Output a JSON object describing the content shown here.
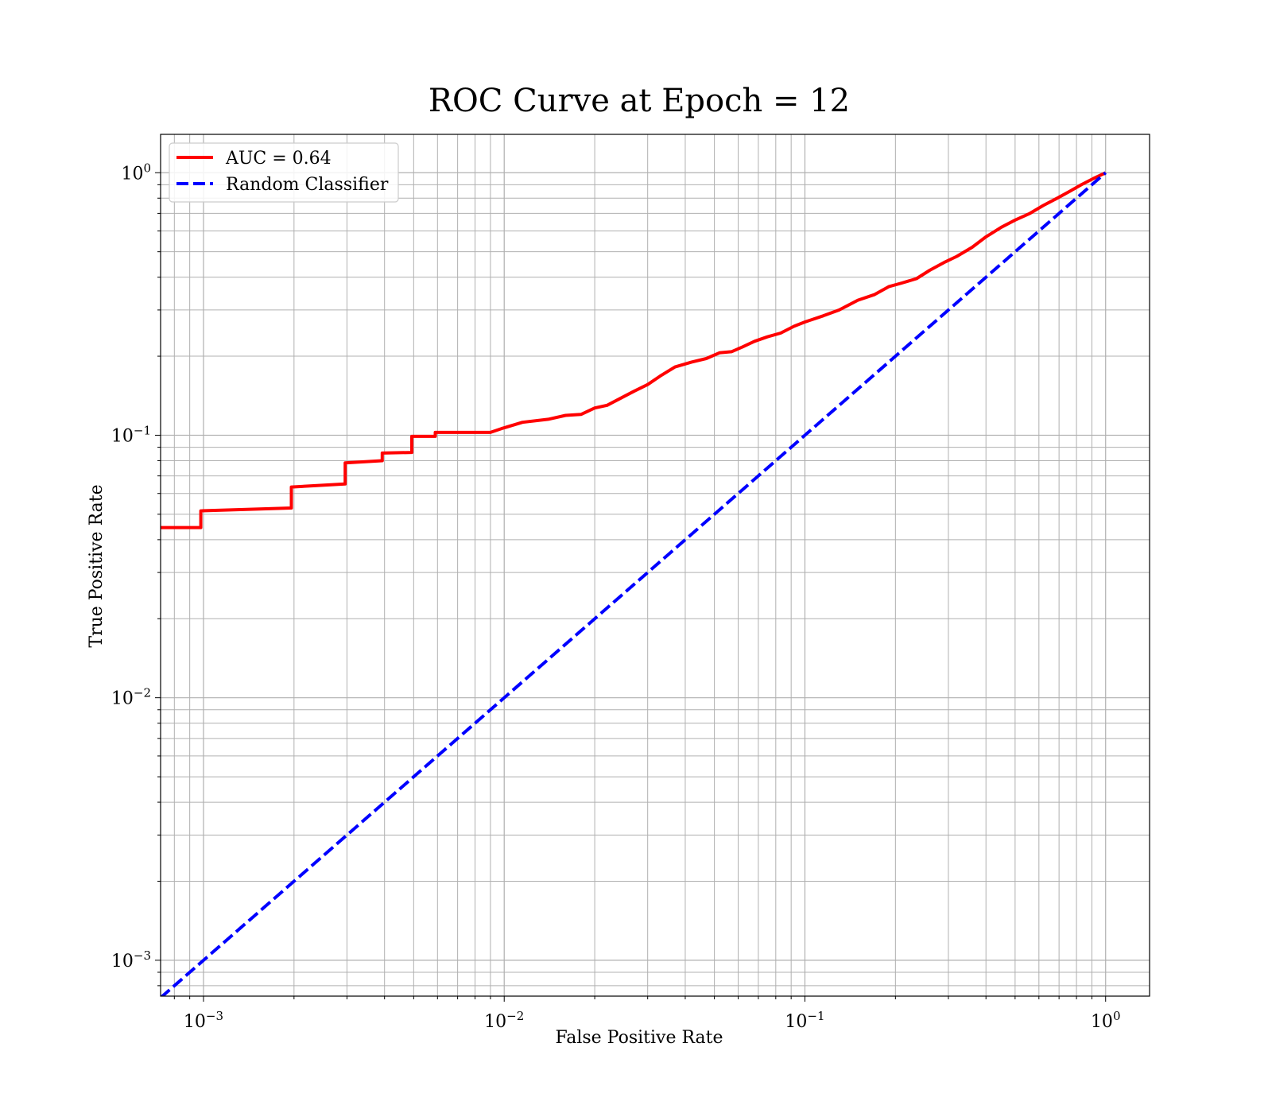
{
  "chart_data": {
    "type": "line",
    "title": "ROC Curve at Epoch = 12",
    "xlabel": "False Positive Rate",
    "ylabel": "True Positive Rate",
    "xscale": "log",
    "yscale": "log",
    "xlim": [
      0.00072,
      1.4
    ],
    "ylim": [
      0.00073,
      1.4
    ],
    "grid": true,
    "grid_minor": true,
    "legend_position": "upper left",
    "x_ticks": [
      {
        "value": 0.001,
        "base": "10",
        "exp": "−3"
      },
      {
        "value": 0.01,
        "base": "10",
        "exp": "−2"
      },
      {
        "value": 0.1,
        "base": "10",
        "exp": "−1"
      },
      {
        "value": 1,
        "base": "10",
        "exp": "0"
      }
    ],
    "y_ticks": [
      {
        "value": 0.001,
        "base": "10",
        "exp": "−3"
      },
      {
        "value": 0.01,
        "base": "10",
        "exp": "−2"
      },
      {
        "value": 0.1,
        "base": "10",
        "exp": "−1"
      },
      {
        "value": 1,
        "base": "10",
        "exp": "0"
      }
    ],
    "series": [
      {
        "name": "AUC = 0.64",
        "color": "#ff0000",
        "style": "solid",
        "points": [
          [
            0.00072,
            0.0445
          ],
          [
            0.00098,
            0.0445
          ],
          [
            0.00098,
            0.0515
          ],
          [
            0.00196,
            0.0528
          ],
          [
            0.00196,
            0.0635
          ],
          [
            0.00296,
            0.0652
          ],
          [
            0.00296,
            0.0785
          ],
          [
            0.00393,
            0.08
          ],
          [
            0.00393,
            0.0855
          ],
          [
            0.00493,
            0.086
          ],
          [
            0.00493,
            0.099
          ],
          [
            0.0059,
            0.099
          ],
          [
            0.0059,
            0.1025
          ],
          [
            0.009,
            0.1025
          ],
          [
            0.0098,
            0.106
          ],
          [
            0.0115,
            0.112
          ],
          [
            0.014,
            0.115
          ],
          [
            0.016,
            0.119
          ],
          [
            0.018,
            0.12
          ],
          [
            0.02,
            0.127
          ],
          [
            0.022,
            0.13
          ],
          [
            0.024,
            0.137
          ],
          [
            0.027,
            0.147
          ],
          [
            0.03,
            0.156
          ],
          [
            0.033,
            0.168
          ],
          [
            0.037,
            0.182
          ],
          [
            0.042,
            0.19
          ],
          [
            0.047,
            0.196
          ],
          [
            0.052,
            0.206
          ],
          [
            0.057,
            0.208
          ],
          [
            0.062,
            0.217
          ],
          [
            0.068,
            0.228
          ],
          [
            0.075,
            0.237
          ],
          [
            0.083,
            0.245
          ],
          [
            0.092,
            0.26
          ],
          [
            0.1,
            0.27
          ],
          [
            0.115,
            0.285
          ],
          [
            0.13,
            0.3
          ],
          [
            0.15,
            0.327
          ],
          [
            0.17,
            0.343
          ],
          [
            0.19,
            0.368
          ],
          [
            0.21,
            0.38
          ],
          [
            0.235,
            0.395
          ],
          [
            0.26,
            0.425
          ],
          [
            0.29,
            0.455
          ],
          [
            0.32,
            0.48
          ],
          [
            0.36,
            0.52
          ],
          [
            0.4,
            0.57
          ],
          [
            0.45,
            0.62
          ],
          [
            0.5,
            0.66
          ],
          [
            0.56,
            0.7
          ],
          [
            0.62,
            0.75
          ],
          [
            0.69,
            0.8
          ],
          [
            0.76,
            0.85
          ],
          [
            0.83,
            0.9
          ],
          [
            0.91,
            0.95
          ],
          [
            1.0,
            1.0
          ]
        ]
      },
      {
        "name": "Random Classifier",
        "color": "#0000ff",
        "style": "dashed",
        "points": [
          [
            0.00072,
            0.00072
          ],
          [
            1.0,
            1.0
          ]
        ]
      }
    ]
  }
}
